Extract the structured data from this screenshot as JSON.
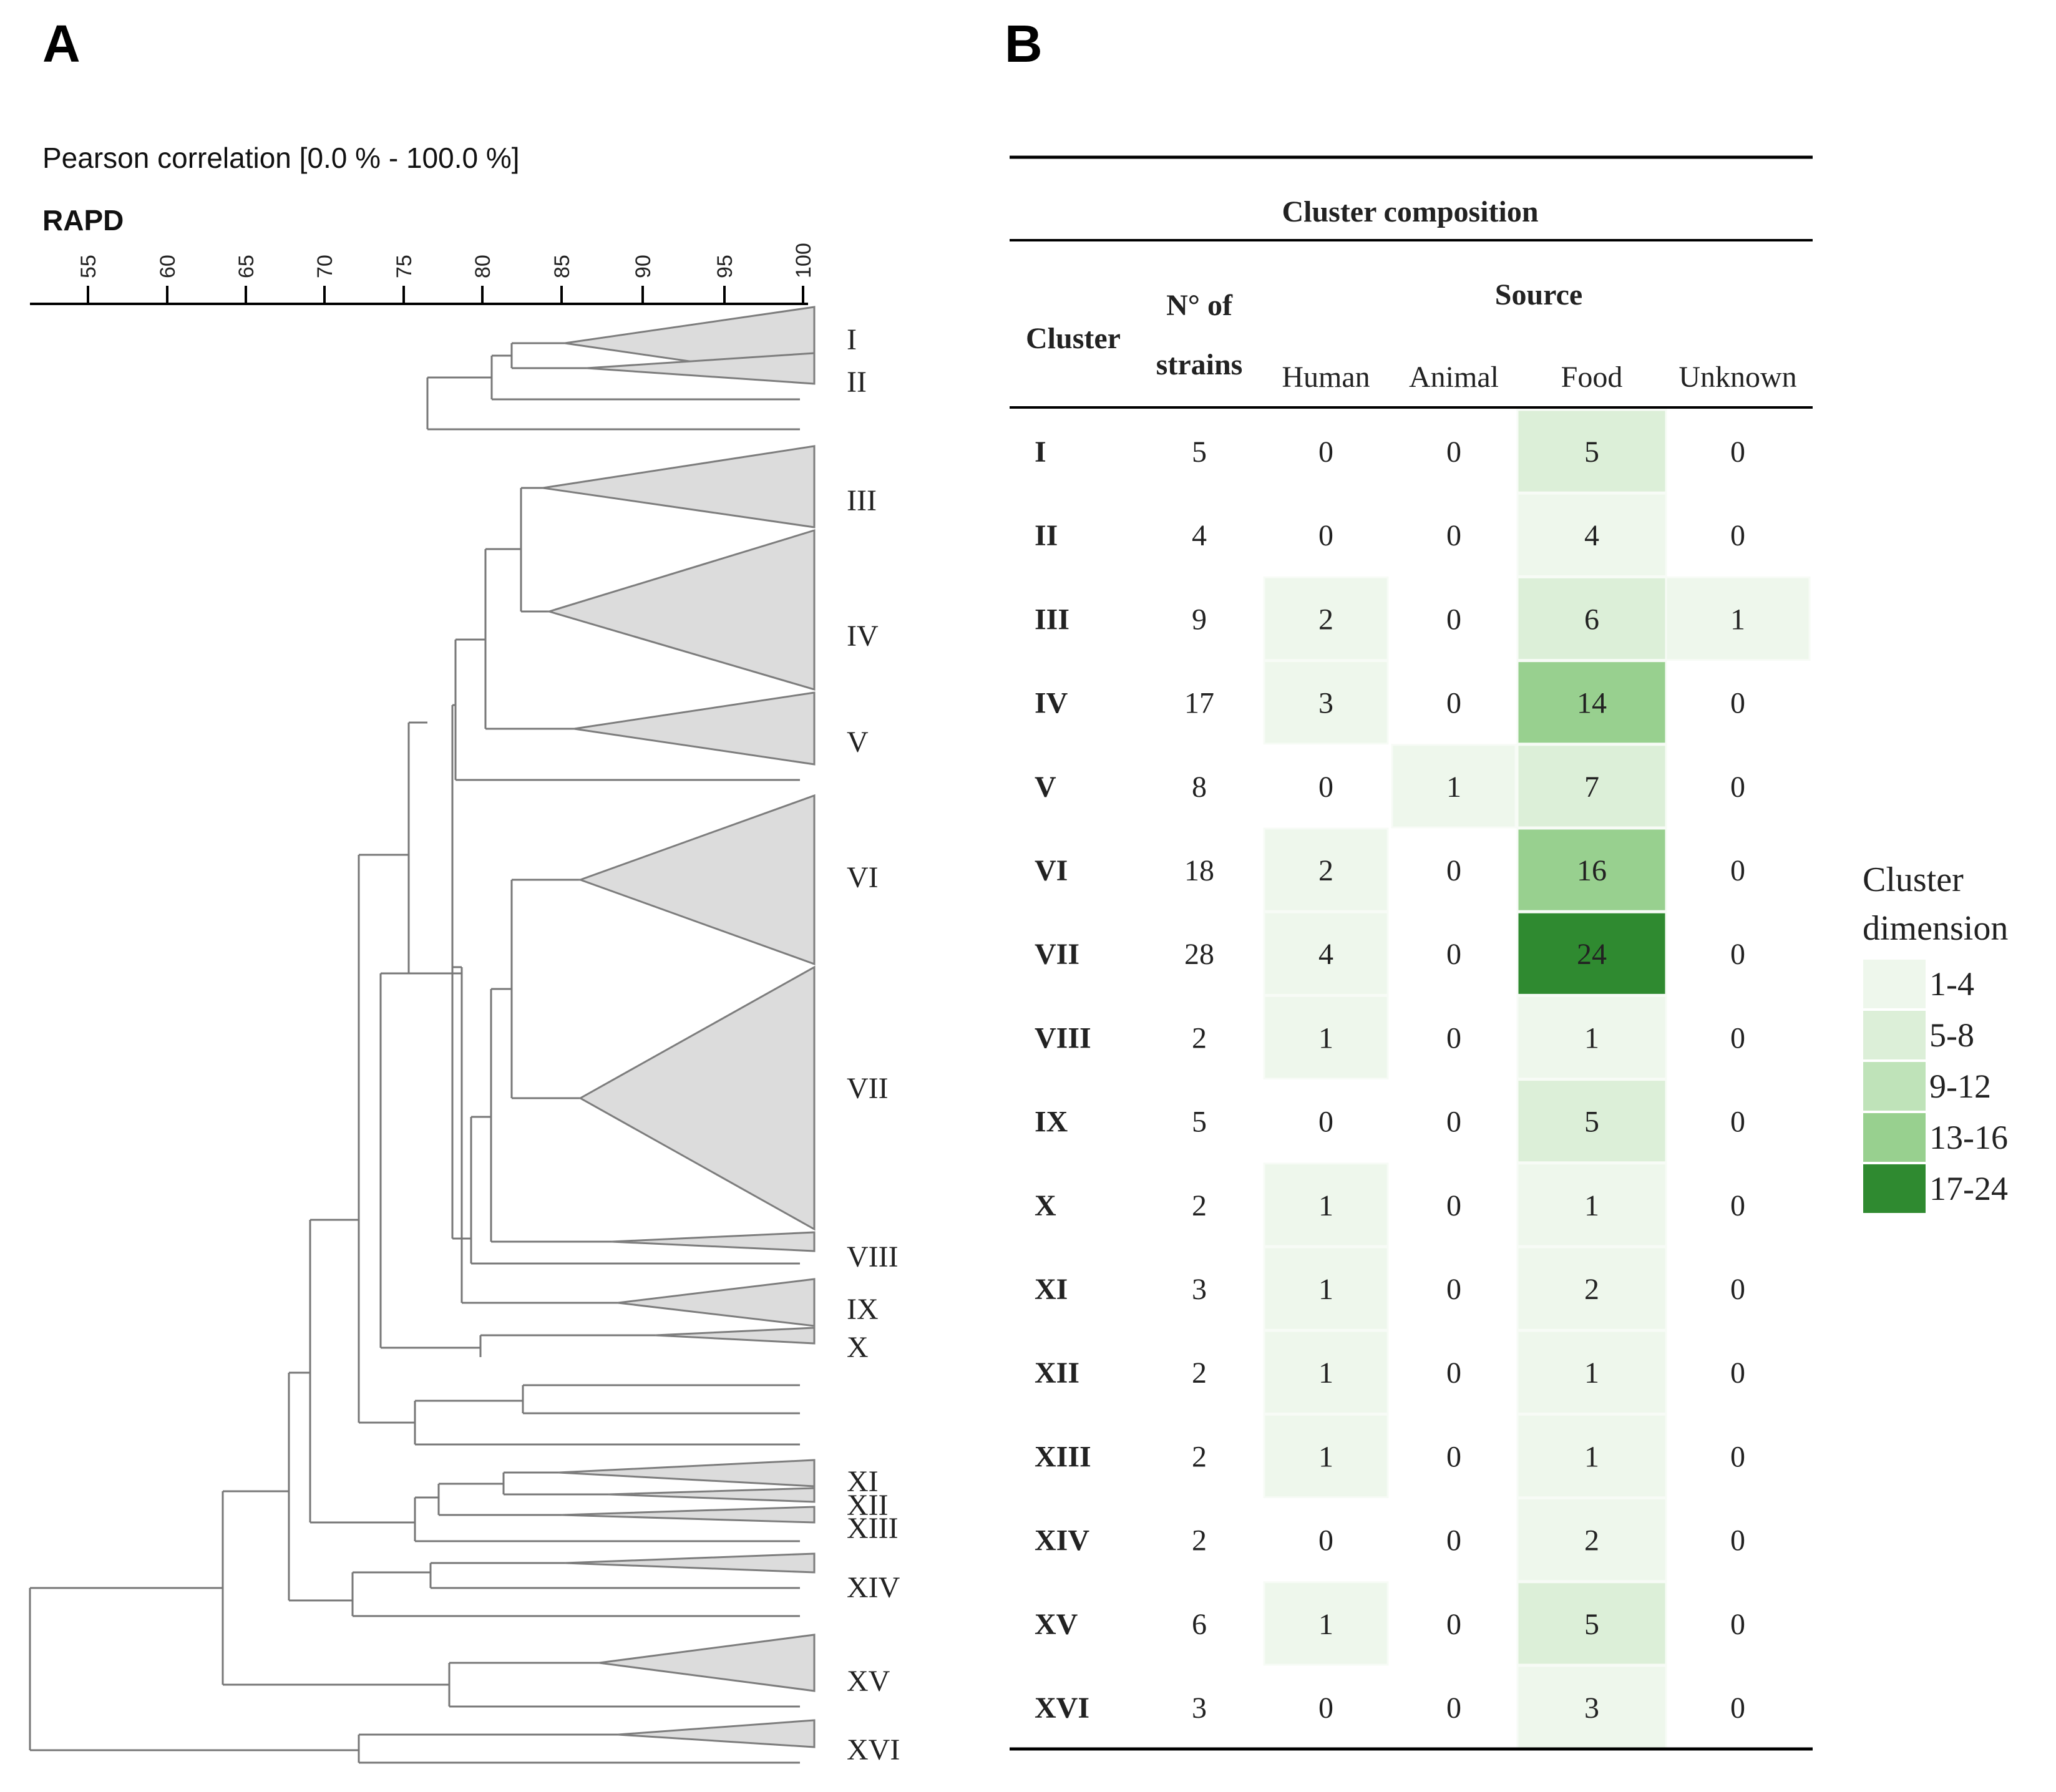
{
  "panel_a": {
    "letter": "A",
    "caption": "Pearson correlation [0.0 % - 100.0 %]",
    "method": "RAPD",
    "scale_ticks": [
      "55",
      "60",
      "65",
      "70",
      "75",
      "80",
      "85",
      "90",
      "95",
      "100"
    ],
    "cluster_labels": [
      "I",
      "II",
      "III",
      "IV",
      "V",
      "VI",
      "VII",
      "VIII",
      "IX",
      "X",
      "XI",
      "XII",
      "XIII",
      "XIV",
      "XV",
      "XVI"
    ]
  },
  "panel_b": {
    "letter": "B",
    "title": "Cluster composition",
    "col_cluster": "Cluster",
    "col_strains_line1": "N° of",
    "col_strains_line2": "strains",
    "source_header": "Source",
    "source_cols": [
      "Human",
      "Animal",
      "Food",
      "Unknown"
    ],
    "rows": [
      {
        "cluster": "I",
        "strains": "5",
        "human": "0",
        "animal": "0",
        "food": "5",
        "unknown": "0"
      },
      {
        "cluster": "II",
        "strains": "4",
        "human": "0",
        "animal": "0",
        "food": "4",
        "unknown": "0"
      },
      {
        "cluster": "III",
        "strains": "9",
        "human": "2",
        "animal": "0",
        "food": "6",
        "unknown": "1"
      },
      {
        "cluster": "IV",
        "strains": "17",
        "human": "3",
        "animal": "0",
        "food": "14",
        "unknown": "0"
      },
      {
        "cluster": "V",
        "strains": "8",
        "human": "0",
        "animal": "1",
        "food": "7",
        "unknown": "0"
      },
      {
        "cluster": "VI",
        "strains": "18",
        "human": "2",
        "animal": "0",
        "food": "16",
        "unknown": "0"
      },
      {
        "cluster": "VII",
        "strains": "28",
        "human": "4",
        "animal": "0",
        "food": "24",
        "unknown": "0"
      },
      {
        "cluster": "VIII",
        "strains": "2",
        "human": "1",
        "animal": "0",
        "food": "1",
        "unknown": "0"
      },
      {
        "cluster": "IX",
        "strains": "5",
        "human": "0",
        "animal": "0",
        "food": "5",
        "unknown": "0"
      },
      {
        "cluster": "X",
        "strains": "2",
        "human": "1",
        "animal": "0",
        "food": "1",
        "unknown": "0"
      },
      {
        "cluster": "XI",
        "strains": "3",
        "human": "1",
        "animal": "0",
        "food": "2",
        "unknown": "0"
      },
      {
        "cluster": "XII",
        "strains": "2",
        "human": "1",
        "animal": "0",
        "food": "1",
        "unknown": "0"
      },
      {
        "cluster": "XIII",
        "strains": "2",
        "human": "1",
        "animal": "0",
        "food": "1",
        "unknown": "0"
      },
      {
        "cluster": "XIV",
        "strains": "2",
        "human": "0",
        "animal": "0",
        "food": "2",
        "unknown": "0"
      },
      {
        "cluster": "XV",
        "strains": "6",
        "human": "1",
        "animal": "0",
        "food": "5",
        "unknown": "0"
      },
      {
        "cluster": "XVI",
        "strains": "3",
        "human": "0",
        "animal": "0",
        "food": "3",
        "unknown": "0"
      }
    ],
    "legend": {
      "title_line1": "Cluster",
      "title_line2": "dimension",
      "items": [
        {
          "label": "1-4",
          "color": "#eef7ec"
        },
        {
          "label": "5-8",
          "color": "#dcefd8"
        },
        {
          "label": "9-12",
          "color": "#bfe3b9"
        },
        {
          "label": "13-16",
          "color": "#98d08f"
        },
        {
          "label": "17-24",
          "color": "#2f8a30"
        }
      ]
    }
  }
}
